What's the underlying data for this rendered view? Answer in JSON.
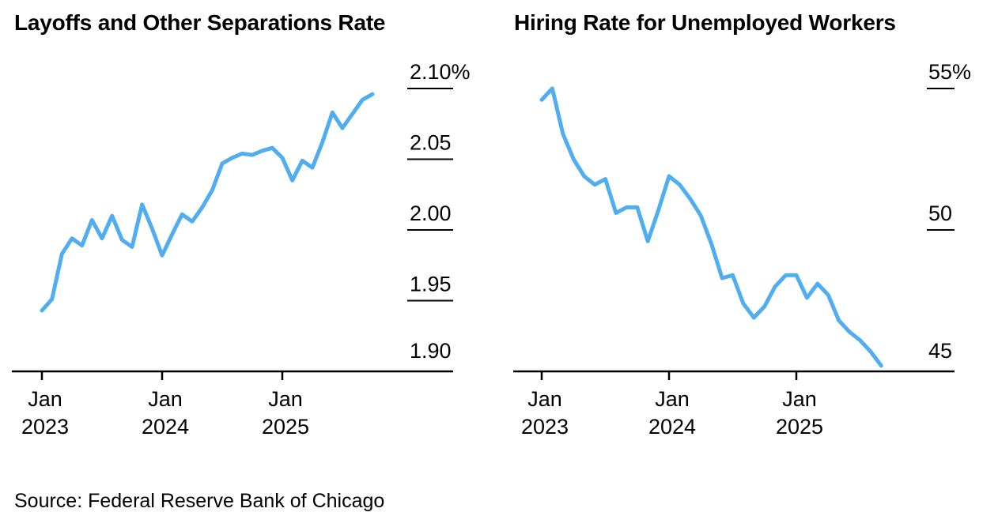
{
  "page": {
    "source_note": "Source: Federal Reserve Bank of Chicago"
  },
  "colors": {
    "line": "#4FADF0",
    "axis": "#000000",
    "text": "#000000"
  },
  "chart_data": [
    {
      "type": "line",
      "title": "Layoffs and Other Separations Rate",
      "unit": "%",
      "legend": "none",
      "grid": false,
      "y_axis_side": "right",
      "ylim": [
        1.9,
        2.1
      ],
      "x": [
        "2023-01",
        "2023-02",
        "2023-03",
        "2023-04",
        "2023-05",
        "2023-06",
        "2023-07",
        "2023-08",
        "2023-09",
        "2023-10",
        "2023-11",
        "2023-12",
        "2024-01",
        "2024-02",
        "2024-03",
        "2024-04",
        "2024-05",
        "2024-06",
        "2024-07",
        "2024-08",
        "2024-09",
        "2024-10",
        "2024-11",
        "2024-12",
        "2025-01",
        "2025-02",
        "2025-03",
        "2025-04",
        "2025-05",
        "2025-06",
        "2025-07",
        "2025-08",
        "2025-09",
        "2025-10"
      ],
      "values": [
        1.943,
        1.951,
        1.983,
        1.994,
        1.989,
        2.007,
        1.994,
        2.01,
        1.993,
        1.988,
        2.018,
        2.001,
        1.982,
        1.997,
        2.011,
        2.006,
        2.016,
        2.028,
        2.047,
        2.051,
        2.054,
        2.053,
        2.056,
        2.058,
        2.051,
        2.035,
        2.049,
        2.044,
        2.062,
        2.083,
        2.072,
        2.082,
        2.092,
        2.096
      ],
      "yticks": [
        {
          "value": 2.1,
          "label": "2.10%"
        },
        {
          "value": 2.05,
          "label": "2.05"
        },
        {
          "value": 2.0,
          "label": "2.00"
        },
        {
          "value": 1.95,
          "label": "1.95"
        },
        {
          "value": 1.9,
          "label": "1.90"
        }
      ],
      "xticks": [
        {
          "month": "2023-01",
          "line1": "Jan",
          "line2": "2023"
        },
        {
          "month": "2024-01",
          "line1": "Jan",
          "line2": "2024"
        },
        {
          "month": "2025-01",
          "line1": "Jan",
          "line2": "2025"
        }
      ]
    },
    {
      "type": "line",
      "title": "Hiring Rate for Unemployed Workers",
      "unit": "%",
      "legend": "none",
      "grid": false,
      "y_axis_side": "right",
      "ylim": [
        45,
        55
      ],
      "x": [
        "2023-01",
        "2023-02",
        "2023-03",
        "2023-04",
        "2023-05",
        "2023-06",
        "2023-07",
        "2023-08",
        "2023-09",
        "2023-10",
        "2023-11",
        "2023-12",
        "2024-01",
        "2024-02",
        "2024-03",
        "2024-04",
        "2024-05",
        "2024-06",
        "2024-07",
        "2024-08",
        "2024-09",
        "2024-10",
        "2024-11",
        "2024-12",
        "2025-01",
        "2025-02",
        "2025-03",
        "2025-04",
        "2025-05",
        "2025-06",
        "2025-07",
        "2025-08",
        "2025-09"
      ],
      "values": [
        54.6,
        55.0,
        53.4,
        52.5,
        51.9,
        51.6,
        51.8,
        50.6,
        50.8,
        50.8,
        49.6,
        50.7,
        51.9,
        51.6,
        51.1,
        50.5,
        49.5,
        48.3,
        48.4,
        47.4,
        46.9,
        47.3,
        48.0,
        48.4,
        48.4,
        47.6,
        48.1,
        47.7,
        46.8,
        46.4,
        46.1,
        45.7,
        45.2
      ],
      "yticks": [
        {
          "value": 55,
          "label": "55%"
        },
        {
          "value": 50,
          "label": "50"
        },
        {
          "value": 45,
          "label": "45"
        }
      ],
      "xticks": [
        {
          "month": "2023-01",
          "line1": "Jan",
          "line2": "2023"
        },
        {
          "month": "2024-01",
          "line1": "Jan",
          "line2": "2024"
        },
        {
          "month": "2025-01",
          "line1": "Jan",
          "line2": "2025"
        }
      ]
    }
  ]
}
